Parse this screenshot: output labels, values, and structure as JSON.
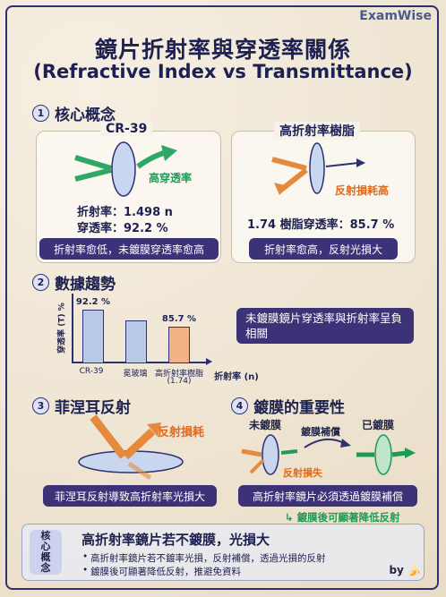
{
  "brand": "ExamWise",
  "title": "鏡片折射率與穿透率關係",
  "subtitle": "(Refractive Index vs Transmittance)",
  "sections": {
    "s1": {
      "num": "1",
      "title": "核心概念"
    },
    "s2": {
      "num": "2",
      "title": "數據趨勢"
    },
    "s3": {
      "num": "3",
      "title": "菲涅耳反射"
    },
    "s4": {
      "num": "4",
      "title": "鍍膜的重要性"
    }
  },
  "cr39": {
    "title": "CR-39",
    "arrow_label": "高穿透率",
    "index_line": "折射率：1.498 n",
    "trans_line": "穿透率：92.2 %",
    "pill": "折射率愈低，未鍍膜穿透率愈高"
  },
  "high": {
    "title": "高折射率樹脂",
    "arrow_label": "反射損耗高",
    "trans_line": "1.74 樹脂穿透率：85.7 %",
    "pill": "折射率愈高，反射光損大"
  },
  "chart_data": {
    "type": "bar",
    "categories": [
      "CR-39",
      "冕玻璃",
      "高折射率樹脂\n(1.74)"
    ],
    "values": [
      92.2,
      null,
      85.7
    ],
    "data_labels": [
      "92.2 %",
      "",
      "85.7 %"
    ],
    "ylabel": "穿透率 (T) %",
    "xlabel": "折射率 (n)",
    "colors": [
      "#b8cbe6",
      "#b8cbe6",
      "#f2b285"
    ]
  },
  "chart_labels": {
    "cat1": "CR-39",
    "cat2": "冕玻璃",
    "cat3a": "高折射率樹脂",
    "cat3b": "(1.74)",
    "v1": "92.2 %",
    "v3": "85.7 %",
    "ylabel": "穿透率 (T) %",
    "xlabel": "折射率 (n)"
  },
  "trend_note": "未鍍膜鏡片穿透率與折射率呈負相關",
  "fresnel": {
    "label": "反射損耗",
    "pill": "菲涅耳反射導致高折射率光損大"
  },
  "coating": {
    "uncoated": "未鍍膜",
    "compensation": "鍍膜補償",
    "coated": "已鍍膜",
    "loss": "反射損失",
    "pill": "高折射率鏡片必須透過鍍膜補償",
    "note": "鍍膜後可顯著降低反射"
  },
  "summary": {
    "side": [
      "核",
      "心",
      "概",
      "念"
    ],
    "title": "高折射率鏡片若不鍍膜，光損大",
    "b1": "高折射率鏡片若不鍍率光損，反射補償，透過光損的反射",
    "b2": "鍍膜後可顯著降低反射，推避免資料"
  },
  "byline": "by",
  "colors": {
    "navy": "#3b3278",
    "orange": "#e06a1c",
    "green": "#1e9a55"
  }
}
